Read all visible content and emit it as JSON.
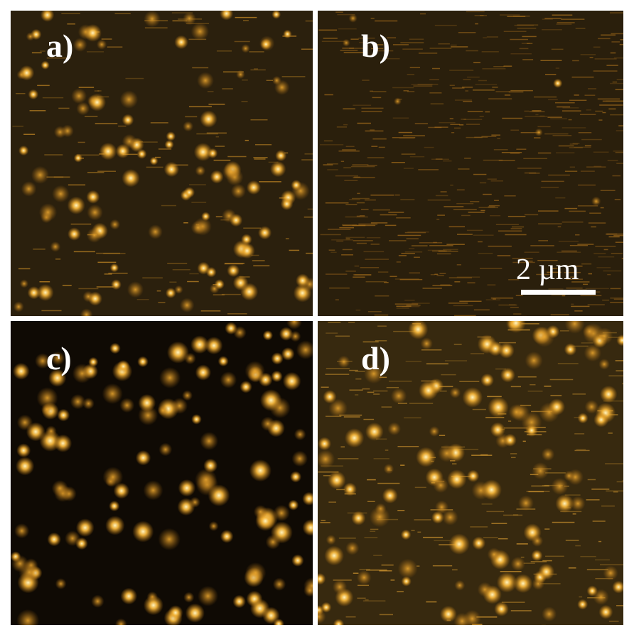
{
  "panels": [
    {
      "label": "a)"
    },
    {
      "label": "b)"
    },
    {
      "label": "c)"
    },
    {
      "label": "d)"
    }
  ],
  "scale_bar": {
    "label": "2 µm"
  }
}
